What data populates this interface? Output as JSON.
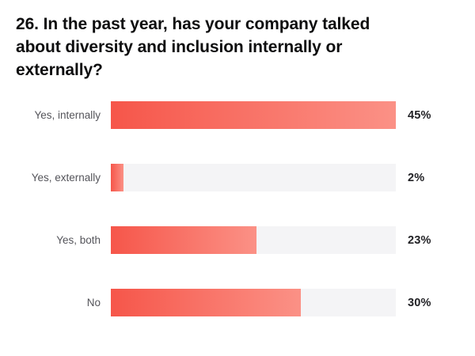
{
  "title": {
    "text": "26. In the past year, has your company talked about diversity and inclusion internally or externally?",
    "lines": [
      "26. In the past year, has your company talked",
      "about diversity and inclusion internally or",
      "externally?"
    ]
  },
  "chart_data": {
    "type": "bar",
    "orientation": "horizontal",
    "title": "26. In the past year, has your company talked about diversity and inclusion internally or externally?",
    "categories": [
      "Yes, internally",
      "Yes, externally",
      "Yes, both",
      "No"
    ],
    "values": [
      45,
      2,
      23,
      30
    ],
    "value_labels": [
      "45%",
      "2%",
      "23%",
      "30%"
    ],
    "xlabel": "",
    "ylabel": "",
    "xlim": [
      0,
      45
    ],
    "grid": false,
    "legend": false,
    "colors": {
      "bar_gradient_start": "#f6564a",
      "bar_gradient_end": "#fb9186",
      "track": "#f4f4f6",
      "category_label": "#54545a",
      "value_label": "#222226",
      "title": "#0d0d0e",
      "background": "#ffffff"
    }
  },
  "bars": [
    {
      "label": "Yes, internally",
      "value": 45,
      "display": "45%"
    },
    {
      "label": "Yes, externally",
      "value": 2,
      "display": "2%"
    },
    {
      "label": "Yes, both",
      "value": 23,
      "display": "23%"
    },
    {
      "label": "No",
      "value": 30,
      "display": "30%"
    }
  ]
}
